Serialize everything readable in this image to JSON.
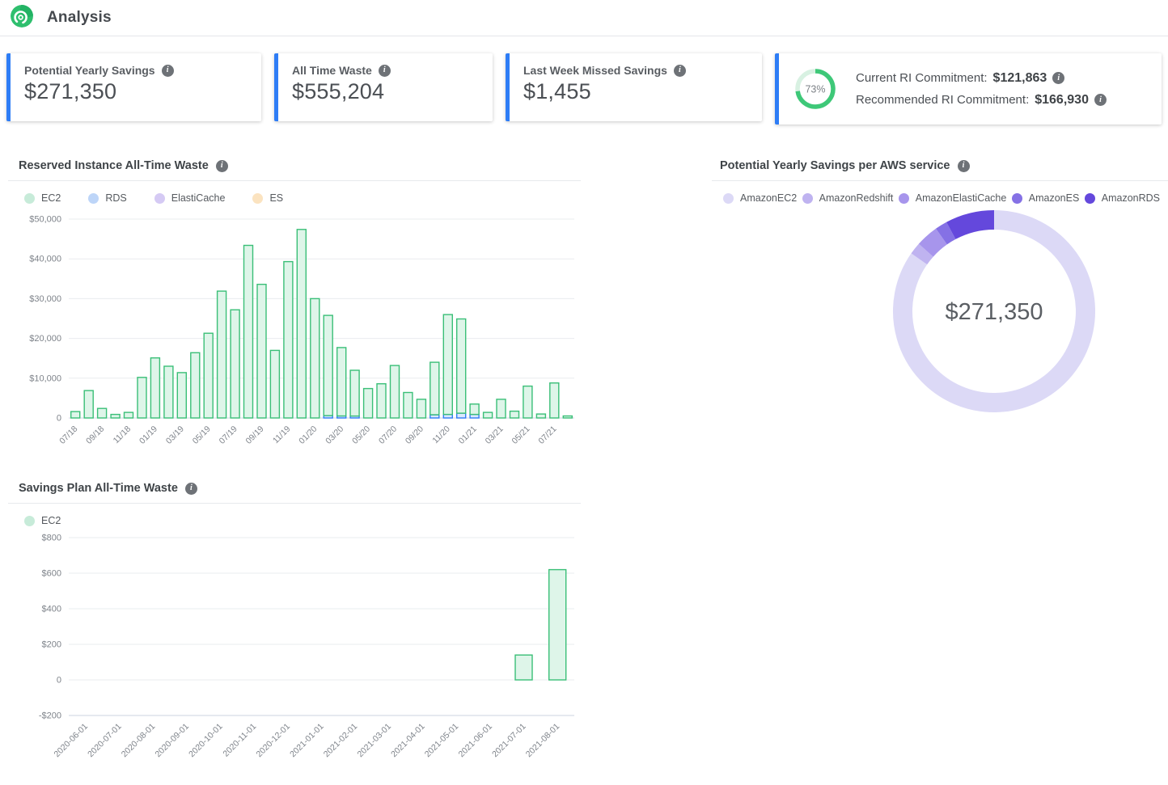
{
  "header": {
    "title": "Analysis"
  },
  "colors": {
    "accent_blue": "#2e7df6",
    "brand_green": "#2fbf6e"
  },
  "cards": {
    "potential_yearly_savings": {
      "label": "Potential Yearly Savings",
      "value": "$271,350"
    },
    "all_time_waste": {
      "label": "All Time Waste",
      "value": "$555,204"
    },
    "last_week_missed_savings": {
      "label": "Last Week Missed Savings",
      "value": "$1,455"
    },
    "ri_commitment": {
      "gauge_percent": 73,
      "gauge_text": "73%",
      "gauge_color": "#3ec878",
      "gauge_track_color": "#d8f1e2",
      "current_label": "Current RI Commitment:",
      "current_value": "$121,863",
      "recommended_label": "Recommended RI Commitment:",
      "recommended_value": "$166,930"
    }
  },
  "chart_data": [
    {
      "id": "reserved-instance-all-time-waste",
      "type": "bar",
      "title": "Reserved Instance All-Time Waste",
      "stacked": true,
      "ylim": [
        0,
        50000
      ],
      "yticks": [
        {
          "label": "$50,000",
          "value": 50000
        },
        {
          "label": "$40,000",
          "value": 40000
        },
        {
          "label": "$30,000",
          "value": 30000
        },
        {
          "label": "$20,000",
          "value": 20000
        },
        {
          "label": "$10,000",
          "value": 10000
        },
        {
          "label": "0",
          "value": 0
        }
      ],
      "categories": [
        "07/18",
        "08/18",
        "09/18",
        "10/18",
        "11/18",
        "12/18",
        "01/19",
        "02/19",
        "03/19",
        "04/19",
        "05/19",
        "06/19",
        "07/19",
        "08/19",
        "09/19",
        "10/19",
        "11/19",
        "12/19",
        "01/20",
        "02/20",
        "03/20",
        "04/20",
        "05/20",
        "06/20",
        "07/20",
        "08/20",
        "09/20",
        "10/20",
        "11/20",
        "12/20",
        "01/21",
        "02/21",
        "03/21",
        "04/21",
        "05/21",
        "06/21",
        "07/21",
        "08/21"
      ],
      "x_label_every": 2,
      "legend": [
        {
          "name": "EC2",
          "dot": "#c7ebd9"
        },
        {
          "name": "RDS",
          "dot": "#bdd5f8"
        },
        {
          "name": "ElastiCache",
          "dot": "#d5caf4"
        },
        {
          "name": "ES",
          "dot": "#fbe3c0"
        }
      ],
      "series": [
        {
          "name": "RDS",
          "fill": "#dbe9fc",
          "stroke": "#2f7df6",
          "values": [
            0,
            0,
            0,
            0,
            0,
            0,
            0,
            0,
            0,
            0,
            0,
            0,
            0,
            0,
            0,
            0,
            0,
            0,
            0,
            600,
            500,
            500,
            0,
            0,
            0,
            0,
            0,
            800,
            900,
            1200,
            900,
            0,
            0,
            0,
            0,
            0,
            0,
            0
          ]
        },
        {
          "name": "EC2",
          "fill": "#def5e9",
          "stroke": "#3abf77",
          "values": [
            1600,
            6900,
            2400,
            900,
            1400,
            10200,
            15100,
            13000,
            11400,
            16400,
            21300,
            31900,
            27200,
            43400,
            33600,
            17000,
            39300,
            47400,
            30000,
            25200,
            17200,
            11500,
            7400,
            8600,
            13200,
            6400,
            4700,
            13200,
            25100,
            23700,
            2600,
            1400,
            4700,
            1700,
            8000,
            1000,
            8800,
            500
          ]
        },
        {
          "name": "ElastiCache",
          "fill": "#eae3fa",
          "stroke": "#8b74e8",
          "values": [
            0,
            0,
            0,
            0,
            0,
            0,
            0,
            0,
            0,
            0,
            0,
            0,
            0,
            0,
            0,
            0,
            0,
            0,
            0,
            0,
            0,
            0,
            0,
            0,
            0,
            0,
            0,
            0,
            0,
            0,
            0,
            0,
            0,
            0,
            0,
            0,
            0,
            0
          ]
        },
        {
          "name": "ES",
          "fill": "#fdeed8",
          "stroke": "#f0a94e",
          "values": [
            0,
            0,
            0,
            0,
            0,
            0,
            0,
            0,
            0,
            0,
            0,
            0,
            0,
            0,
            0,
            0,
            0,
            0,
            0,
            0,
            0,
            0,
            0,
            0,
            0,
            0,
            0,
            0,
            0,
            0,
            0,
            0,
            0,
            0,
            0,
            0,
            0,
            0
          ]
        }
      ]
    },
    {
      "id": "potential-yearly-savings-per-aws-service",
      "type": "pie",
      "title": "Potential Yearly Savings per AWS service",
      "center_label": "$271,350",
      "total": 271350,
      "segments": [
        {
          "name": "AmazonEC2",
          "value": 229850,
          "color": "#dcd9f6"
        },
        {
          "name": "AmazonRedshift",
          "value": 5200,
          "color": "#bfb3f0"
        },
        {
          "name": "AmazonElastiCache",
          "value": 9800,
          "color": "#a795ec"
        },
        {
          "name": "AmazonES",
          "value": 5300,
          "color": "#8571e5"
        },
        {
          "name": "AmazonRDS",
          "value": 21200,
          "color": "#6448dc"
        }
      ]
    },
    {
      "id": "savings-plan-all-time-waste",
      "type": "bar",
      "title": "Savings Plan All-Time Waste",
      "stacked": false,
      "ylim": [
        -200,
        800
      ],
      "yticks": [
        {
          "label": "$800",
          "value": 800
        },
        {
          "label": "$600",
          "value": 600
        },
        {
          "label": "$400",
          "value": 400
        },
        {
          "label": "$200",
          "value": 200
        },
        {
          "label": "0",
          "value": 0
        },
        {
          "label": "-$200",
          "value": -200
        }
      ],
      "categories": [
        "2020-06-01",
        "2020-07-01",
        "2020-08-01",
        "2020-09-01",
        "2020-10-01",
        "2020-11-01",
        "2020-12-01",
        "2021-01-01",
        "2021-02-01",
        "2021-03-01",
        "2021-04-01",
        "2021-05-01",
        "2021-06-01",
        "2021-07-01",
        "2021-08-01"
      ],
      "x_label_every": 1,
      "legend": [
        {
          "name": "EC2",
          "dot": "#c7ebd9"
        }
      ],
      "series": [
        {
          "name": "EC2",
          "fill": "#def5e9",
          "stroke": "#3abf77",
          "values": [
            0,
            0,
            0,
            0,
            0,
            0,
            0,
            0,
            0,
            0,
            0,
            0,
            0,
            140,
            620
          ]
        }
      ]
    }
  ]
}
